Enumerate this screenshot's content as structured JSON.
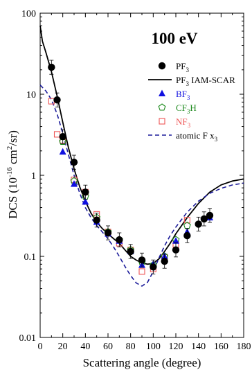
{
  "chart_data": {
    "type": "scatter",
    "annotation": "100 eV",
    "xlabel": "Scattering angle (degree)",
    "ylabel": "DCS (10-16 cm2/sr)",
    "xlim": [
      0,
      180
    ],
    "ylim": [
      0.01,
      100
    ],
    "yscale": "log",
    "x_ticks": [
      0,
      20,
      40,
      60,
      80,
      100,
      120,
      140,
      160,
      180
    ],
    "y_ticks": [
      0.01,
      0.1,
      1,
      10,
      100
    ],
    "y_tick_labels": [
      "0.01",
      "0.1",
      "1",
      "10",
      "100"
    ],
    "legend_position": "top-right",
    "series": [
      {
        "name": "PF3",
        "kind": "points",
        "marker": "filled-circle",
        "color": "#000000",
        "x": [
          10,
          15,
          20,
          30,
          40,
          50,
          60,
          70,
          80,
          90,
          100,
          110,
          120,
          130,
          140,
          145,
          150
        ],
        "y": [
          21.5,
          8.5,
          3.0,
          1.45,
          0.62,
          0.28,
          0.195,
          0.16,
          0.115,
          0.09,
          0.074,
          0.087,
          0.12,
          0.18,
          0.25,
          0.29,
          0.32
        ],
        "error_bars": true
      },
      {
        "name": "PF3 IAM-SCAR",
        "kind": "line",
        "line_style": "solid",
        "color": "#000000",
        "x": [
          0,
          2,
          5,
          10,
          15,
          20,
          25,
          30,
          35,
          40,
          45,
          50,
          55,
          60,
          65,
          70,
          75,
          80,
          85,
          90,
          95,
          100,
          105,
          110,
          115,
          120,
          130,
          140,
          150,
          160,
          170,
          180
        ],
        "y": [
          70,
          45,
          33,
          19,
          9.5,
          4.5,
          2.2,
          1.2,
          0.72,
          0.48,
          0.34,
          0.265,
          0.22,
          0.19,
          0.165,
          0.145,
          0.12,
          0.1,
          0.09,
          0.083,
          0.08,
          0.082,
          0.093,
          0.115,
          0.145,
          0.19,
          0.3,
          0.45,
          0.62,
          0.76,
          0.85,
          0.9
        ]
      },
      {
        "name": "BF3",
        "kind": "points",
        "marker": "filled-triangle",
        "color": "#1010e0",
        "x": [
          20,
          30,
          40,
          50,
          60,
          70,
          80,
          90,
          100,
          110,
          120,
          130,
          150
        ],
        "y": [
          1.95,
          0.78,
          0.47,
          0.265,
          0.19,
          0.155,
          0.115,
          0.078,
          0.08,
          0.1,
          0.155,
          0.2,
          0.3
        ]
      },
      {
        "name": "CF3H",
        "kind": "points",
        "marker": "open-pentagon",
        "color": "#1e8a1e",
        "x": [
          20,
          30,
          40,
          50,
          60,
          70,
          80,
          90,
          100,
          110,
          120,
          130
        ],
        "y": [
          2.6,
          0.85,
          0.55,
          0.3,
          0.2,
          0.16,
          0.12,
          0.085,
          0.078,
          0.1,
          0.16,
          0.24
        ]
      },
      {
        "name": "NF3",
        "kind": "points",
        "marker": "open-square",
        "color": "#ee5555",
        "x": [
          10,
          15,
          20,
          30,
          40,
          50,
          60,
          70,
          80,
          90,
          100,
          110,
          120,
          130
        ],
        "y": [
          8.2,
          3.2,
          2.7,
          0.88,
          0.62,
          0.33,
          0.2,
          0.145,
          0.12,
          0.065,
          0.07,
          0.098,
          0.14,
          0.28
        ]
      },
      {
        "name": "atomic F x3",
        "kind": "line",
        "line_style": "dashed",
        "color": "#1a1a99",
        "x": [
          0,
          5,
          10,
          15,
          20,
          25,
          30,
          35,
          40,
          45,
          50,
          55,
          60,
          65,
          70,
          75,
          80,
          85,
          90,
          95,
          100,
          105,
          110,
          115,
          120,
          130,
          140,
          150,
          160,
          170,
          180
        ],
        "y": [
          13,
          11,
          8.6,
          5.7,
          3.3,
          1.8,
          1.0,
          0.6,
          0.4,
          0.3,
          0.24,
          0.2,
          0.165,
          0.13,
          0.1,
          0.075,
          0.058,
          0.047,
          0.043,
          0.048,
          0.065,
          0.095,
          0.135,
          0.18,
          0.23,
          0.35,
          0.48,
          0.6,
          0.69,
          0.76,
          0.8
        ]
      }
    ]
  }
}
